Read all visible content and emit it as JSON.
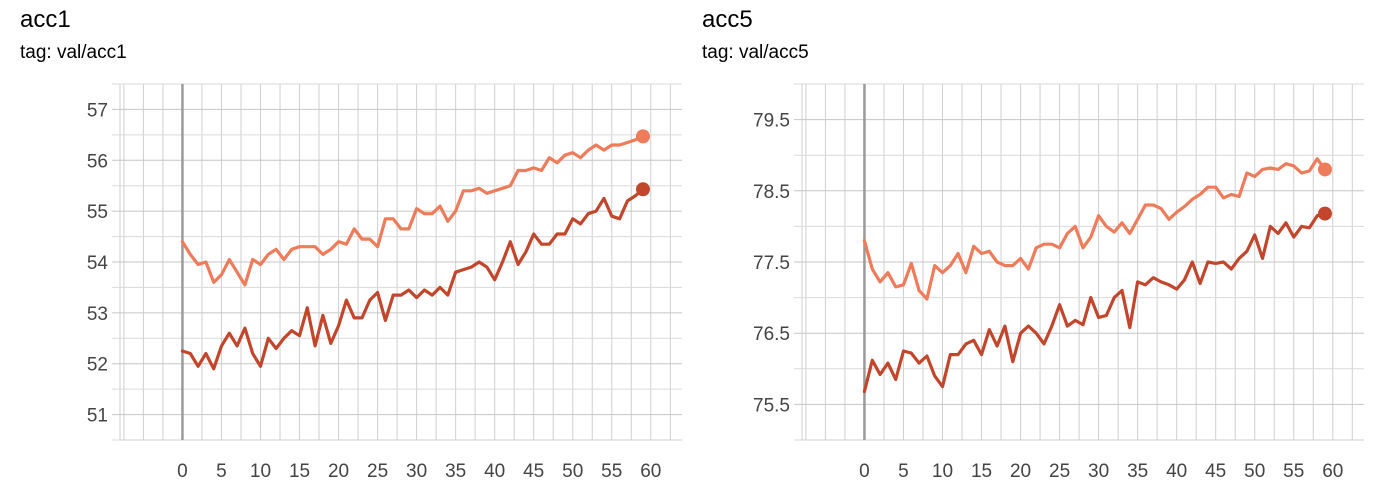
{
  "panels": [
    {
      "title": "acc1",
      "tag": "tag: val/acc1"
    },
    {
      "title": "acc5",
      "tag": "tag: val/acc5"
    }
  ],
  "chart_data": [
    {
      "type": "line",
      "title": "acc1",
      "subtitle": "tag: val/acc1",
      "xlabel": "",
      "ylabel": "",
      "xlim": [
        -8,
        64
      ],
      "ylim": [
        50.5,
        57.5
      ],
      "xticks": [
        0,
        5,
        10,
        15,
        20,
        25,
        30,
        35,
        40,
        45,
        50,
        55,
        60
      ],
      "yticks": [
        51,
        52,
        53,
        54,
        55,
        56,
        57
      ],
      "grid": true,
      "series": [
        {
          "color": "#EE7B59",
          "x": [
            0,
            1,
            2,
            3,
            4,
            5,
            6,
            7,
            8,
            9,
            10,
            11,
            12,
            13,
            14,
            15,
            16,
            17,
            18,
            19,
            20,
            21,
            22,
            23,
            24,
            25,
            26,
            27,
            28,
            29,
            30,
            31,
            32,
            33,
            34,
            35,
            36,
            37,
            38,
            39,
            40,
            41,
            42,
            43,
            44,
            45,
            46,
            47,
            48,
            49,
            50,
            51,
            52,
            53,
            54,
            55,
            56,
            57,
            58,
            59
          ],
          "values": [
            54.4,
            54.15,
            53.95,
            54.0,
            53.6,
            53.75,
            54.05,
            53.8,
            53.55,
            54.05,
            53.95,
            54.15,
            54.25,
            54.05,
            54.25,
            54.3,
            54.3,
            54.3,
            54.15,
            54.25,
            54.4,
            54.35,
            54.65,
            54.45,
            54.45,
            54.3,
            54.85,
            54.85,
            54.65,
            54.65,
            55.05,
            54.95,
            54.95,
            55.1,
            54.8,
            55.0,
            55.4,
            55.4,
            55.45,
            55.35,
            55.4,
            55.45,
            55.5,
            55.8,
            55.8,
            55.85,
            55.8,
            56.05,
            55.95,
            56.1,
            56.15,
            56.05,
            56.2,
            56.3,
            56.2,
            56.3,
            56.3,
            56.35,
            56.4,
            56.47
          ]
        },
        {
          "color": "#C2462B",
          "x": [
            0,
            1,
            2,
            3,
            4,
            5,
            6,
            7,
            8,
            9,
            10,
            11,
            12,
            13,
            14,
            15,
            16,
            17,
            18,
            19,
            20,
            21,
            22,
            23,
            24,
            25,
            26,
            27,
            28,
            29,
            30,
            31,
            32,
            33,
            34,
            35,
            36,
            37,
            38,
            39,
            40,
            41,
            42,
            43,
            44,
            45,
            46,
            47,
            48,
            49,
            50,
            51,
            52,
            53,
            54,
            55,
            56,
            57,
            58,
            59
          ],
          "values": [
            52.25,
            52.2,
            51.95,
            52.2,
            51.9,
            52.35,
            52.6,
            52.35,
            52.7,
            52.2,
            51.95,
            52.5,
            52.3,
            52.5,
            52.65,
            52.55,
            53.1,
            52.35,
            52.95,
            52.4,
            52.75,
            53.25,
            52.9,
            52.9,
            53.25,
            53.4,
            52.85,
            53.35,
            53.35,
            53.45,
            53.3,
            53.45,
            53.35,
            53.5,
            53.35,
            53.8,
            53.85,
            53.9,
            54.0,
            53.9,
            53.65,
            54.0,
            54.4,
            53.95,
            54.2,
            54.55,
            54.35,
            54.35,
            54.55,
            54.55,
            54.85,
            54.75,
            54.95,
            55.0,
            55.25,
            54.9,
            54.85,
            55.2,
            55.3,
            55.43
          ]
        }
      ]
    },
    {
      "type": "line",
      "title": "acc5",
      "subtitle": "tag: val/acc5",
      "xlabel": "",
      "ylabel": "",
      "xlim": [
        -8,
        64
      ],
      "ylim": [
        75.0,
        80.0
      ],
      "xticks": [
        0,
        5,
        10,
        15,
        20,
        25,
        30,
        35,
        40,
        45,
        50,
        55,
        60
      ],
      "yticks": [
        75.5,
        76.5,
        77.5,
        78.5,
        79.5
      ],
      "grid": true,
      "series": [
        {
          "color": "#EE7B59",
          "x": [
            0,
            1,
            2,
            3,
            4,
            5,
            6,
            7,
            8,
            9,
            10,
            11,
            12,
            13,
            14,
            15,
            16,
            17,
            18,
            19,
            20,
            21,
            22,
            23,
            24,
            25,
            26,
            27,
            28,
            29,
            30,
            31,
            32,
            33,
            34,
            35,
            36,
            37,
            38,
            39,
            40,
            41,
            42,
            43,
            44,
            45,
            46,
            47,
            48,
            49,
            50,
            51,
            52,
            53,
            54,
            55,
            56,
            57,
            58,
            59
          ],
          "values": [
            77.8,
            77.4,
            77.22,
            77.35,
            77.15,
            77.18,
            77.48,
            77.1,
            76.98,
            77.45,
            77.35,
            77.45,
            77.62,
            77.35,
            77.72,
            77.62,
            77.65,
            77.5,
            77.45,
            77.45,
            77.55,
            77.4,
            77.7,
            77.75,
            77.75,
            77.7,
            77.9,
            78.0,
            77.7,
            77.85,
            78.15,
            78.0,
            77.92,
            78.05,
            77.9,
            78.1,
            78.3,
            78.3,
            78.25,
            78.1,
            78.2,
            78.28,
            78.38,
            78.45,
            78.55,
            78.55,
            78.4,
            78.45,
            78.42,
            78.75,
            78.7,
            78.8,
            78.82,
            78.8,
            78.88,
            78.85,
            78.75,
            78.78,
            78.95,
            78.8
          ]
        },
        {
          "color": "#C2462B",
          "x": [
            0,
            1,
            2,
            3,
            4,
            5,
            6,
            7,
            8,
            9,
            10,
            11,
            12,
            13,
            14,
            15,
            16,
            17,
            18,
            19,
            20,
            21,
            22,
            23,
            24,
            25,
            26,
            27,
            28,
            29,
            30,
            31,
            32,
            33,
            34,
            35,
            36,
            37,
            38,
            39,
            40,
            41,
            42,
            43,
            44,
            45,
            46,
            47,
            48,
            49,
            50,
            51,
            52,
            53,
            54,
            55,
            56,
            57,
            58,
            59
          ],
          "values": [
            75.68,
            76.12,
            75.92,
            76.08,
            75.85,
            76.25,
            76.22,
            76.08,
            76.18,
            75.9,
            75.75,
            76.2,
            76.2,
            76.35,
            76.4,
            76.2,
            76.55,
            76.32,
            76.6,
            76.1,
            76.5,
            76.6,
            76.5,
            76.35,
            76.6,
            76.9,
            76.6,
            76.68,
            76.62,
            77.0,
            76.72,
            76.75,
            77.0,
            77.1,
            76.58,
            77.22,
            77.18,
            77.28,
            77.22,
            77.18,
            77.12,
            77.25,
            77.5,
            77.2,
            77.5,
            77.48,
            77.5,
            77.4,
            77.55,
            77.65,
            77.88,
            77.55,
            78.0,
            77.9,
            78.05,
            77.85,
            78.0,
            77.98,
            78.15,
            78.18
          ]
        }
      ]
    }
  ]
}
